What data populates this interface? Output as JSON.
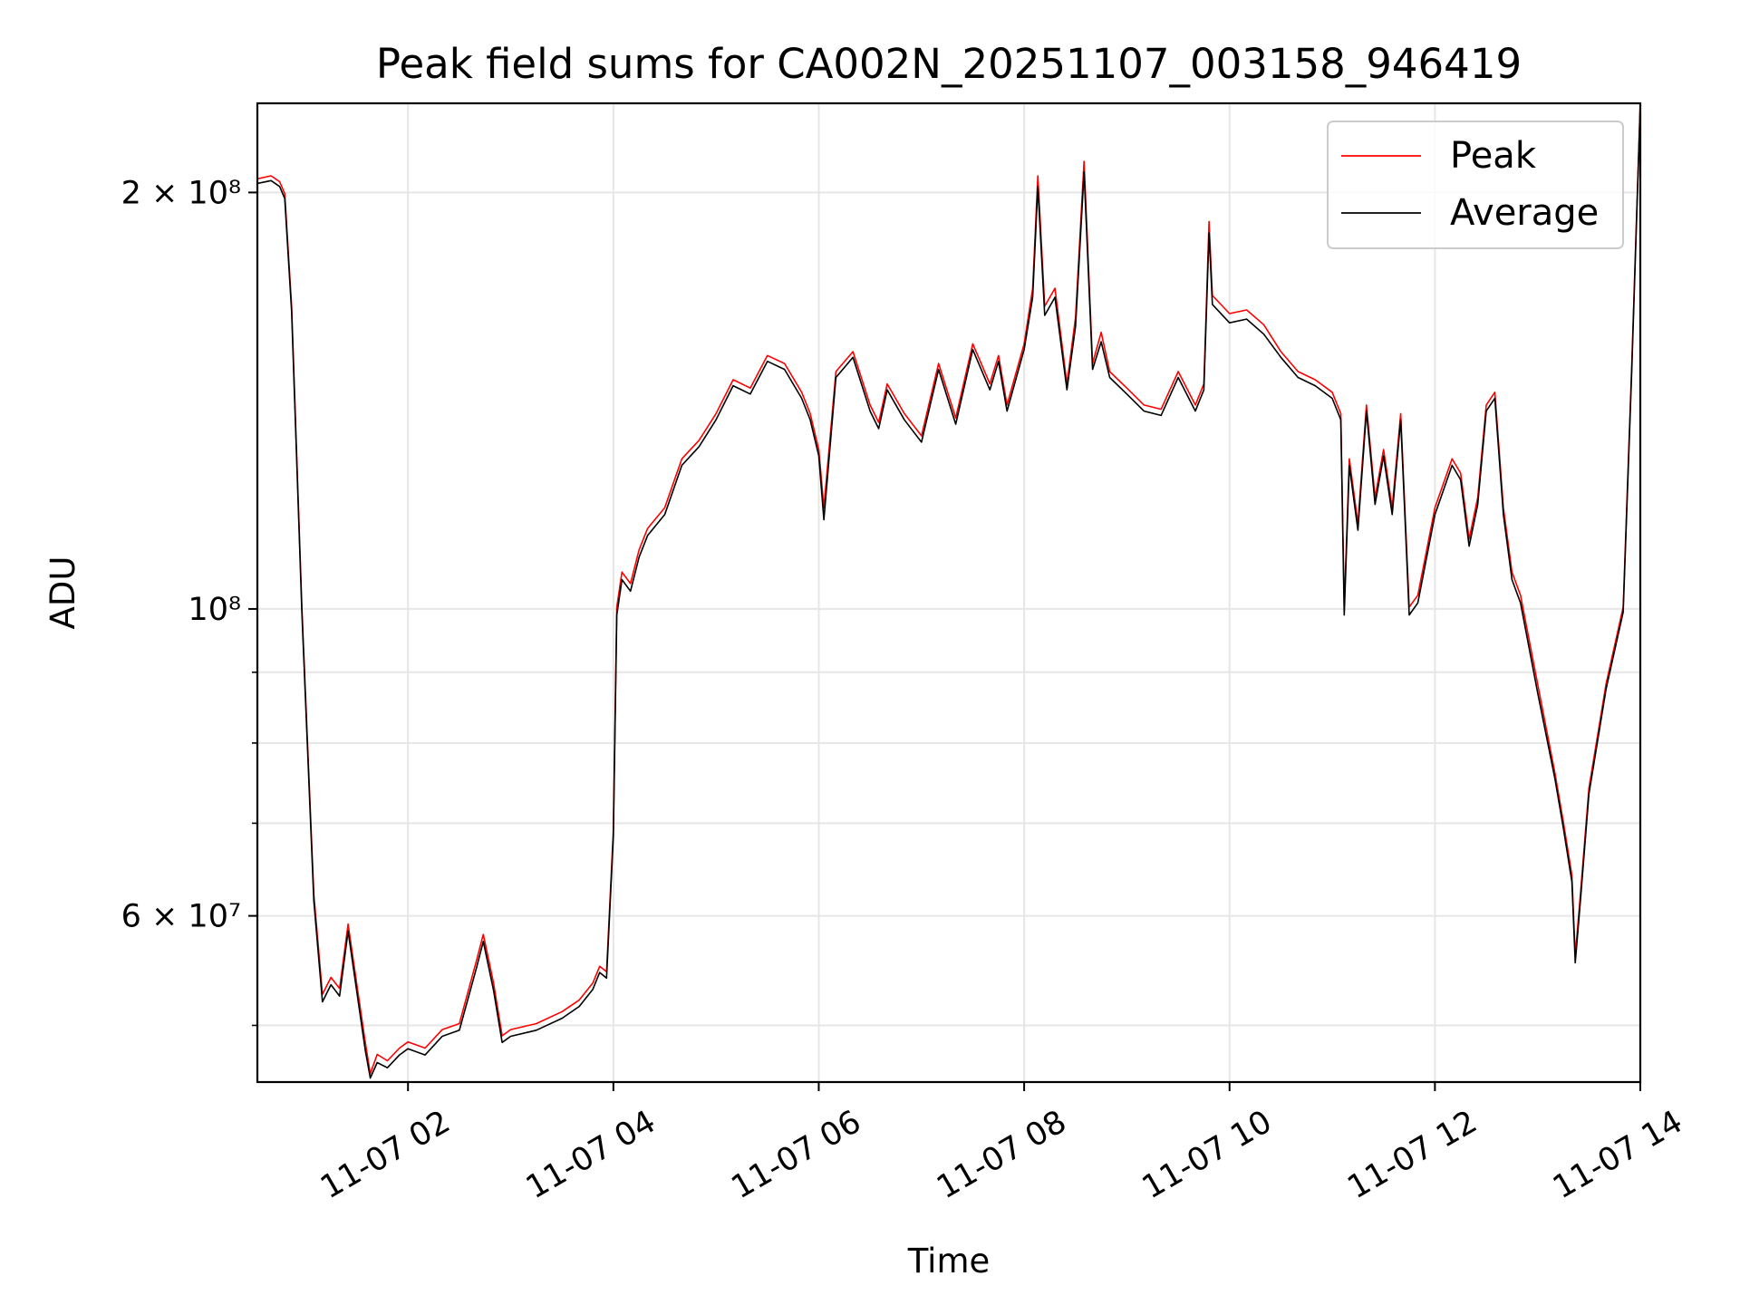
{
  "chart_data": {
    "type": "line",
    "title": "Peak field sums for CA002N_20251107_003158_946419",
    "xlabel": "Time",
    "ylabel": "ADU",
    "yscale": "log",
    "xlim": [
      "2025-11-07 00:32",
      "2025-11-07 14:00"
    ],
    "ylim": [
      45500000,
      232000000
    ],
    "grid": true,
    "legend_position": "top-right",
    "x_ticks": [
      "11-07 02",
      "11-07 04",
      "11-07 06",
      "11-07 08",
      "11-07 10",
      "11-07 12",
      "11-07 14"
    ],
    "y_ticks": [
      "2 × 10^8",
      "10^8",
      "6 × 10^7"
    ],
    "y_tick_values": [
      200000000,
      100000000,
      60000000
    ],
    "colors": {
      "Peak": "#ff0000",
      "Average": "#000000"
    },
    "x": [
      "2025-11-07 00:32",
      "2025-11-07 00:40",
      "2025-11-07 00:45",
      "2025-11-07 00:48",
      "2025-11-07 00:52",
      "2025-11-07 00:58",
      "2025-11-07 01:05",
      "2025-11-07 01:10",
      "2025-11-07 01:15",
      "2025-11-07 01:20",
      "2025-11-07 01:25",
      "2025-11-07 01:30",
      "2025-11-07 01:35",
      "2025-11-07 01:38",
      "2025-11-07 01:42",
      "2025-11-07 01:48",
      "2025-11-07 01:55",
      "2025-11-07 02:00",
      "2025-11-07 02:10",
      "2025-11-07 02:20",
      "2025-11-07 02:30",
      "2025-11-07 02:40",
      "2025-11-07 02:44",
      "2025-11-07 02:50",
      "2025-11-07 02:55",
      "2025-11-07 03:00",
      "2025-11-07 03:15",
      "2025-11-07 03:30",
      "2025-11-07 03:40",
      "2025-11-07 03:48",
      "2025-11-07 03:52",
      "2025-11-07 03:56",
      "2025-11-07 04:00",
      "2025-11-07 04:02",
      "2025-11-07 04:05",
      "2025-11-07 04:10",
      "2025-11-07 04:15",
      "2025-11-07 04:20",
      "2025-11-07 04:30",
      "2025-11-07 04:40",
      "2025-11-07 04:50",
      "2025-11-07 05:00",
      "2025-11-07 05:10",
      "2025-11-07 05:20",
      "2025-11-07 05:30",
      "2025-11-07 05:40",
      "2025-11-07 05:50",
      "2025-11-07 05:55",
      "2025-11-07 06:00",
      "2025-11-07 06:03",
      "2025-11-07 06:10",
      "2025-11-07 06:20",
      "2025-11-07 06:30",
      "2025-11-07 06:35",
      "2025-11-07 06:40",
      "2025-11-07 06:50",
      "2025-11-07 07:00",
      "2025-11-07 07:10",
      "2025-11-07 07:20",
      "2025-11-07 07:30",
      "2025-11-07 07:40",
      "2025-11-07 07:45",
      "2025-11-07 07:50",
      "2025-11-07 08:00",
      "2025-11-07 08:05",
      "2025-11-07 08:08",
      "2025-11-07 08:12",
      "2025-11-07 08:18",
      "2025-11-07 08:25",
      "2025-11-07 08:30",
      "2025-11-07 08:35",
      "2025-11-07 08:40",
      "2025-11-07 08:45",
      "2025-11-07 08:50",
      "2025-11-07 09:00",
      "2025-11-07 09:10",
      "2025-11-07 09:20",
      "2025-11-07 09:30",
      "2025-11-07 09:40",
      "2025-11-07 09:45",
      "2025-11-07 09:48",
      "2025-11-07 09:50",
      "2025-11-07 10:00",
      "2025-11-07 10:10",
      "2025-11-07 10:20",
      "2025-11-07 10:30",
      "2025-11-07 10:40",
      "2025-11-07 10:50",
      "2025-11-07 11:00",
      "2025-11-07 11:05",
      "2025-11-07 11:07",
      "2025-11-07 11:10",
      "2025-11-07 11:15",
      "2025-11-07 11:20",
      "2025-11-07 11:25",
      "2025-11-07 11:30",
      "2025-11-07 11:35",
      "2025-11-07 11:40",
      "2025-11-07 11:45",
      "2025-11-07 11:50",
      "2025-11-07 12:00",
      "2025-11-07 12:10",
      "2025-11-07 12:15",
      "2025-11-07 12:20",
      "2025-11-07 12:25",
      "2025-11-07 12:30",
      "2025-11-07 12:35",
      "2025-11-07 12:40",
      "2025-11-07 12:45",
      "2025-11-07 12:50",
      "2025-11-07 13:00",
      "2025-11-07 13:10",
      "2025-11-07 13:15",
      "2025-11-07 13:20",
      "2025-11-07 13:22",
      "2025-11-07 13:25",
      "2025-11-07 13:30",
      "2025-11-07 13:40",
      "2025-11-07 13:50",
      "2025-11-07 13:55",
      "2025-11-07 14:00"
    ],
    "series": [
      {
        "name": "Peak",
        "values": [
          204000000,
          205000000,
          203000000,
          199000000,
          165000000,
          100000000,
          62000000,
          52500000,
          54000000,
          53000000,
          59000000,
          53500000,
          48500000,
          46000000,
          47500000,
          47000000,
          48000000,
          48500000,
          48000000,
          49500000,
          50000000,
          55500000,
          58000000,
          53500000,
          49000000,
          49500000,
          50000000,
          51000000,
          52000000,
          53500000,
          55000000,
          54500000,
          69000000,
          100000000,
          106000000,
          104000000,
          110000000,
          114000000,
          118000000,
          128000000,
          132000000,
          138000000,
          146000000,
          144000000,
          152000000,
          150000000,
          143000000,
          138000000,
          130000000,
          118000000,
          148000000,
          153000000,
          140000000,
          136000000,
          145000000,
          138000000,
          133000000,
          150000000,
          137000000,
          155000000,
          145000000,
          152000000,
          140000000,
          155000000,
          170000000,
          205000000,
          165000000,
          170000000,
          145000000,
          162000000,
          210000000,
          150000000,
          158000000,
          148000000,
          144000000,
          140000000,
          139000000,
          148000000,
          140000000,
          145000000,
          190000000,
          168000000,
          163000000,
          164000000,
          160000000,
          153000000,
          148000000,
          146000000,
          143000000,
          138000000,
          100000000,
          128000000,
          115000000,
          140000000,
          120000000,
          130000000,
          118000000,
          138000000,
          100000000,
          102000000,
          118000000,
          128000000,
          125000000,
          112000000,
          120000000,
          140000000,
          143000000,
          118000000,
          106000000,
          102000000,
          88000000,
          76000000,
          70000000,
          64000000,
          56000000,
          62000000,
          74000000,
          88000000,
          100000000,
          150000000,
          232000000
        ]
      },
      {
        "name": "Average",
        "values": [
          203000000,
          204000000,
          202000000,
          198000000,
          164000000,
          99500000,
          61500000,
          52000000,
          53500000,
          52500000,
          58500000,
          53000000,
          48000000,
          45800000,
          47000000,
          46600000,
          47600000,
          48100000,
          47600000,
          49100000,
          49600000,
          55000000,
          57500000,
          53000000,
          48600000,
          49100000,
          49600000,
          50600000,
          51600000,
          53100000,
          54600000,
          54100000,
          68500000,
          99000000,
          105000000,
          103000000,
          109000000,
          113000000,
          117000000,
          127000000,
          131000000,
          137000000,
          145000000,
          143000000,
          151000000,
          149000000,
          142000000,
          137000000,
          129000000,
          116000000,
          147000000,
          152000000,
          139000000,
          135000000,
          144000000,
          137000000,
          132000000,
          149000000,
          136000000,
          154000000,
          144000000,
          151000000,
          139000000,
          154000000,
          168000000,
          202000000,
          163000000,
          168000000,
          144000000,
          160000000,
          207000000,
          149000000,
          156000000,
          147000000,
          143000000,
          139000000,
          138000000,
          147000000,
          139000000,
          144000000,
          187000000,
          166000000,
          161000000,
          162000000,
          158000000,
          152000000,
          147000000,
          145000000,
          142000000,
          137000000,
          99000000,
          127000000,
          114000000,
          139000000,
          119000000,
          129000000,
          117000000,
          137000000,
          99000000,
          101000000,
          117000000,
          127000000,
          124000000,
          111000000,
          119000000,
          139000000,
          142000000,
          117000000,
          105000000,
          101000000,
          87000000,
          75500000,
          69500000,
          63500000,
          55500000,
          61500000,
          73500000,
          87500000,
          99500000,
          149000000,
          232000000
        ]
      }
    ]
  }
}
